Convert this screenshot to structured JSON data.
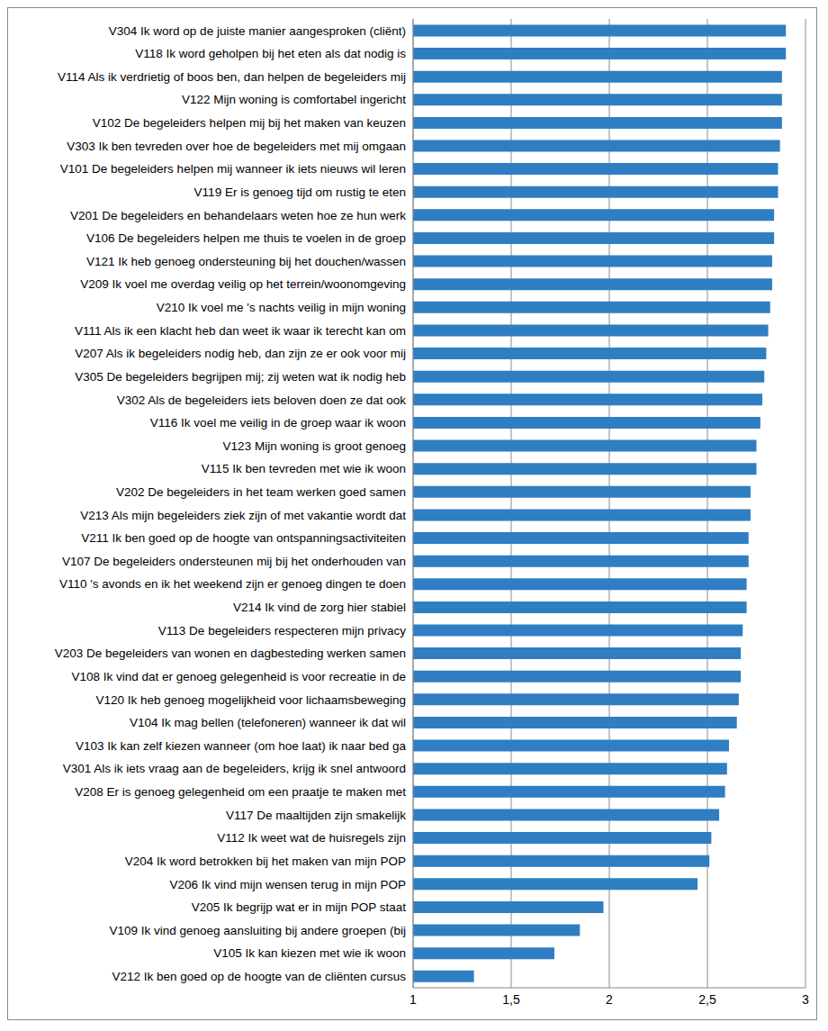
{
  "chart_data": {
    "type": "bar",
    "orientation": "horizontal",
    "grid": true,
    "color": "#2f7ec2",
    "categories": [
      "V304 Ik word op de juiste manier aangesproken (cliënt)",
      "V118 Ik word geholpen bij het eten als dat nodig is",
      "V114 Als ik verdrietig of boos ben, dan helpen de begeleiders mij",
      "V122 Mijn woning is comfortabel ingericht",
      "V102 De begeleiders helpen mij bij het maken van keuzen",
      "V303 Ik ben tevreden over hoe de begeleiders met mij omgaan",
      "V101 De begeleiders helpen mij wanneer ik iets nieuws wil leren",
      "V119 Er is genoeg tijd om rustig te eten",
      "V201 De begeleiders en behandelaars weten hoe ze hun werk",
      "V106 De begeleiders helpen me thuis te voelen in de groep",
      "V121 Ik heb genoeg ondersteuning bij het douchen/wassen",
      "V209 Ik voel me overdag veilig op het terrein/woonomgeving",
      "V210 Ik voel me 's nachts veilig in mijn woning",
      "V111 Als ik een klacht heb dan weet ik waar ik terecht kan om",
      "V207 Als ik begeleiders nodig heb, dan zijn ze er ook voor mij",
      "V305 De begeleiders begrijpen mij; zij weten wat ik nodig heb",
      "V302 Als de begeleiders iets beloven doen ze dat ook",
      "V116 Ik voel me veilig in de groep waar ik woon",
      "V123 Mijn woning is groot genoeg",
      "V115 Ik ben tevreden met wie ik woon",
      "V202 De begeleiders in het team werken goed samen",
      "V213 Als mijn begeleiders ziek zijn of met vakantie wordt dat",
      "V211 Ik ben goed op de hoogte van ontspanningsactiviteiten",
      "V107 De begeleiders ondersteunen mij bij het onderhouden van",
      "V110 's avonds en ik het weekend zijn er genoeg dingen te doen",
      "V214 Ik vind de zorg hier stabiel",
      "V113 De begeleiders respecteren mijn privacy",
      "V203 De begeleiders van wonen en dagbesteding werken samen",
      "V108 Ik vind dat er genoeg gelegenheid is voor recreatie in de",
      "V120 Ik heb genoeg mogelijkheid voor lichaamsbeweging",
      "V104 Ik mag bellen (telefoneren) wanneer ik dat wil",
      "V103 Ik kan zelf kiezen wanneer (om hoe laat) ik naar bed ga",
      "V301 Als ik iets vraag aan de begeleiders, krijg ik snel antwoord",
      "V208 Er is genoeg gelegenheid om een praatje te maken met",
      "V117 De maaltijden zijn smakelijk",
      "V112 Ik weet wat de huisregels zijn",
      "V204 Ik word betrokken bij het maken van mijn POP",
      "V206 Ik vind mijn wensen terug in mijn POP",
      "V205 Ik begrijp wat er in mijn POP staat",
      "V109 Ik vind genoeg aansluiting bij andere groepen (bij",
      "V105 Ik kan kiezen met wie ik woon",
      "V212 Ik ben goed op de hoogte van de cliënten cursus"
    ],
    "values": [
      2.9,
      2.9,
      2.88,
      2.88,
      2.88,
      2.87,
      2.86,
      2.86,
      2.84,
      2.84,
      2.83,
      2.83,
      2.82,
      2.81,
      2.8,
      2.79,
      2.78,
      2.77,
      2.75,
      2.75,
      2.72,
      2.72,
      2.71,
      2.71,
      2.7,
      2.7,
      2.68,
      2.67,
      2.67,
      2.66,
      2.65,
      2.61,
      2.6,
      2.59,
      2.56,
      2.52,
      2.51,
      2.45,
      1.97,
      1.85,
      1.72,
      1.31
    ],
    "xlim": [
      1,
      3
    ],
    "xticks": [
      1,
      {
        "value": 1.5,
        "label": "1,5"
      },
      2,
      {
        "value": 2.5,
        "label": "2,5"
      },
      3
    ]
  }
}
